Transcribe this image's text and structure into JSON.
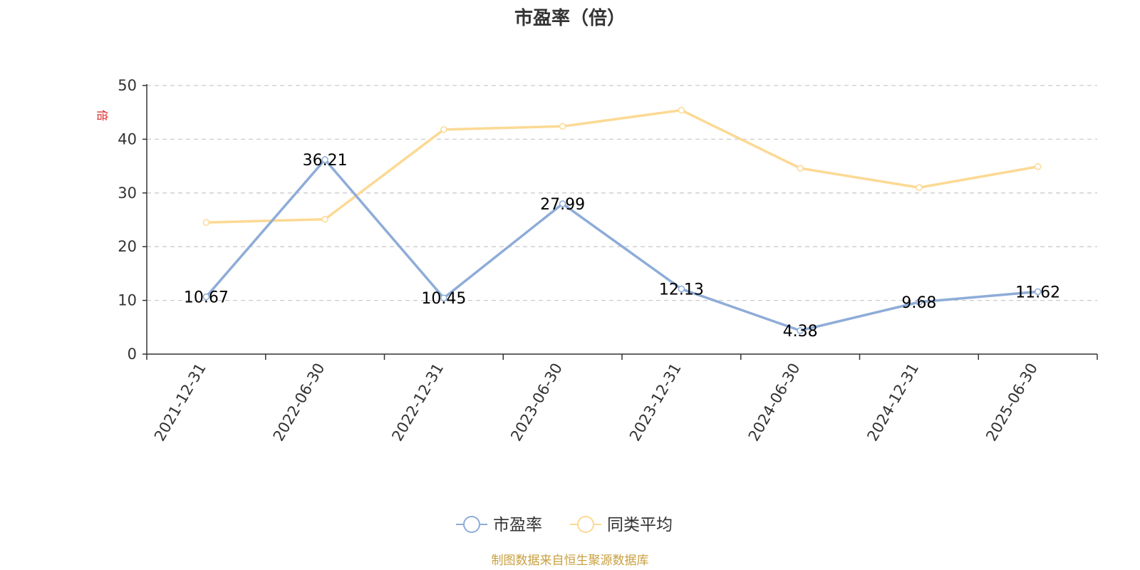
{
  "chart_data": {
    "type": "line",
    "title": "市盈率（倍）",
    "ylabel": "倍",
    "xlabel": "",
    "categories": [
      "2021-12-31",
      "2022-06-30",
      "2022-12-31",
      "2023-06-30",
      "2023-12-31",
      "2024-06-30",
      "2024-12-31",
      "2025-06-30"
    ],
    "ylim": [
      0,
      50
    ],
    "yticks": [
      0,
      10,
      20,
      30,
      40,
      50
    ],
    "grid": true,
    "legend_position": "bottom",
    "series": [
      {
        "name": "市盈率",
        "color": "#8eacd8",
        "values": [
          10.67,
          36.21,
          10.45,
          27.99,
          12.13,
          4.38,
          9.68,
          11.62
        ],
        "labels": [
          "10.67",
          "36.21",
          "10.45",
          "27.99",
          "12.13",
          "4.38",
          "9.68",
          "11.62"
        ]
      },
      {
        "name": "同类平均",
        "color": "#fcd994",
        "values": [
          24.5,
          25.1,
          41.8,
          42.4,
          45.4,
          34.6,
          31.0,
          34.9
        ]
      }
    ]
  },
  "footer": {
    "source": "制图数据来自恒生聚源数据库"
  }
}
